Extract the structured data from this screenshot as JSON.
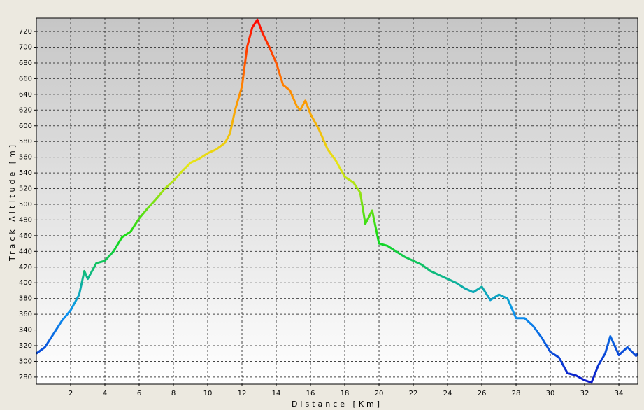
{
  "chart_data": {
    "type": "line",
    "xlabel": "Distance [Km]",
    "ylabel": "Track Altitude [m]",
    "x": [
      0,
      0.5,
      1,
      1.5,
      2,
      2.5,
      2.8,
      3,
      3.5,
      4,
      4.5,
      5,
      5.5,
      6,
      6.5,
      7,
      7.5,
      8,
      8.5,
      9,
      9.5,
      10,
      10.5,
      11,
      11.3,
      11.6,
      12,
      12.3,
      12.6,
      12.9,
      13.2,
      13.6,
      14,
      14.4,
      14.8,
      15.2,
      15.4,
      15.7,
      16,
      16.5,
      17,
      17.5,
      18,
      18.5,
      18.9,
      19.2,
      19.6,
      20,
      20.5,
      21,
      21.5,
      22,
      22.5,
      23,
      23.5,
      24,
      24.5,
      25,
      25.5,
      26,
      26.5,
      27,
      27.5,
      28,
      28.5,
      29,
      29.5,
      30,
      30.5,
      31,
      31.5,
      32,
      32.4,
      32.8,
      33.2,
      33.5,
      34,
      34.5,
      35,
      35.1
    ],
    "series": [
      {
        "name": "Track Altitude",
        "colorscale": [
          "#0a14c8",
          "#0a96f0",
          "#14dc14",
          "#e6e614",
          "#ff8c00",
          "#ff0000"
        ],
        "values": [
          310,
          318,
          335,
          352,
          365,
          385,
          415,
          405,
          425,
          428,
          440,
          458,
          465,
          482,
          495,
          507,
          520,
          530,
          542,
          553,
          558,
          565,
          570,
          578,
          590,
          620,
          650,
          700,
          725,
          735,
          718,
          700,
          680,
          652,
          645,
          625,
          620,
          632,
          615,
          595,
          570,
          555,
          535,
          528,
          515,
          475,
          492,
          450,
          447,
          440,
          433,
          428,
          423,
          415,
          410,
          405,
          400,
          393,
          388,
          395,
          378,
          385,
          380,
          355,
          355,
          345,
          330,
          312,
          305,
          285,
          282,
          276,
          273,
          295,
          310,
          332,
          308,
          318,
          307,
          310
        ]
      }
    ],
    "xlim": [
      0,
      35.1
    ],
    "ylim": [
      271,
      737
    ],
    "xticks": [
      2,
      4,
      6,
      8,
      10,
      12,
      14,
      16,
      18,
      20,
      22,
      24,
      26,
      28,
      30,
      32,
      34
    ],
    "yticks": [
      280,
      300,
      320,
      340,
      360,
      380,
      400,
      420,
      440,
      460,
      480,
      500,
      520,
      540,
      560,
      580,
      600,
      620,
      640,
      660,
      680,
      700,
      720
    ],
    "grid": true
  }
}
